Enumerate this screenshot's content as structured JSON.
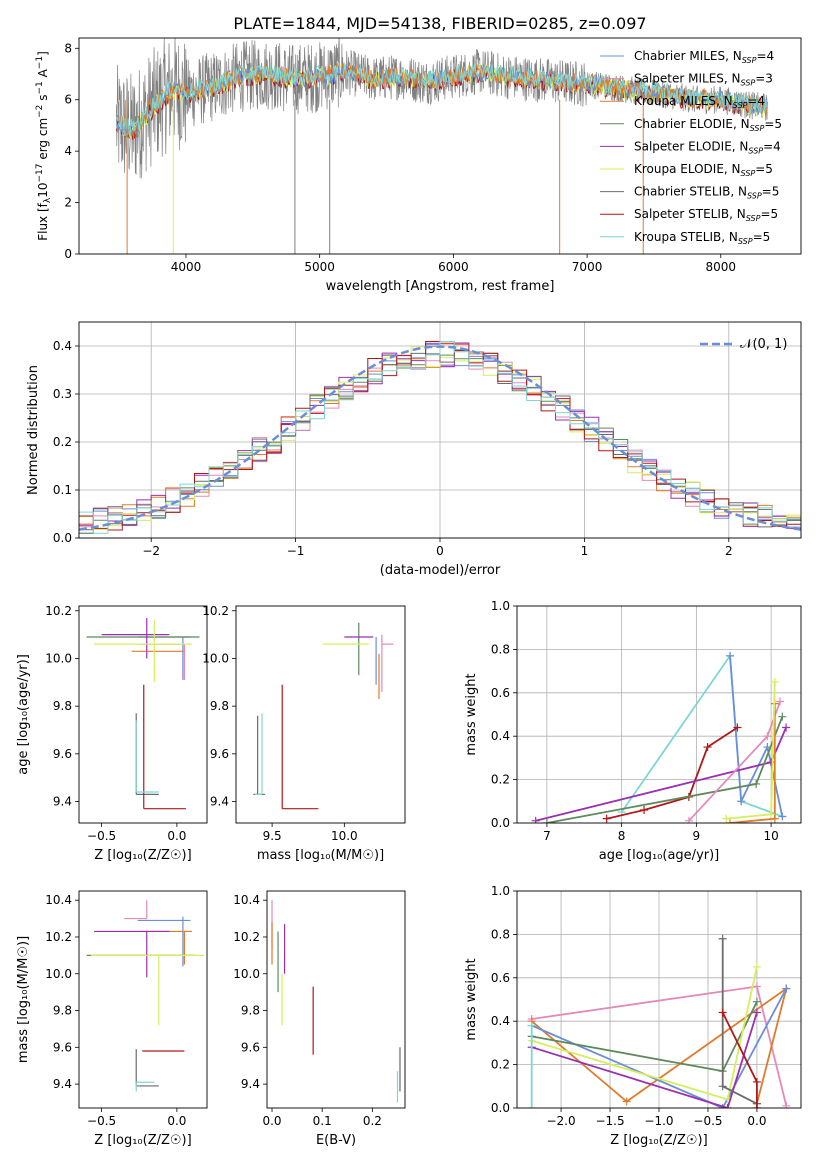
{
  "title": "PLATE=1844, MJD=54138, FIBERID=0285, z=0.097",
  "colors": {
    "chabrier_miles": "#6a8fd8",
    "salpeter_miles": "#e589b8",
    "kroupa_miles": "#e07b2a",
    "chabrier_elodie": "#5e8a5e",
    "salpeter_elodie": "#9b2fb0",
    "kroupa_elodie": "#d6ee5a",
    "chabrier_stelib": "#6b6b6b",
    "salpeter_stelib": "#b01818",
    "kroupa_stelib": "#7fd6d6"
  },
  "chart_data": [
    {
      "id": "spectrum",
      "type": "line",
      "xlabel": "wavelength [Angstrom, rest frame]",
      "ylabel": "Flux [f$_λ$10$^{-17}$ erg cm$^{-2}$ s$^{-1}$ A$^{-1}$]",
      "ylabel_parts": [
        "Flux [f",
        "λ",
        "10",
        "−17",
        " erg cm",
        "−2",
        " s",
        "−1",
        " A",
        "−1",
        "]"
      ],
      "xlim": [
        3200,
        8600
      ],
      "ylim": [
        0,
        8.4
      ],
      "xticks": [
        4000,
        5000,
        6000,
        7000,
        8000
      ],
      "yticks": [
        0,
        2,
        4,
        6,
        8
      ],
      "data_x": [
        3480,
        3600,
        3750,
        3900,
        4000,
        4200,
        4400,
        4600,
        4800,
        5000,
        5200,
        5400,
        5600,
        5800,
        6000,
        6200,
        6400,
        6600,
        6800,
        7000,
        7200,
        7400,
        7600,
        7800,
        8000,
        8200,
        8350
      ],
      "data_y": [
        5.1,
        4.8,
        5.7,
        6.4,
        6.2,
        6.5,
        6.9,
        7.0,
        6.8,
        6.9,
        7.1,
        6.8,
        6.9,
        6.7,
        6.9,
        7.1,
        6.9,
        6.8,
        6.7,
        6.6,
        6.5,
        6.3,
        6.2,
        6.0,
        6.0,
        5.8,
        5.7
      ],
      "legend_location": "upper right",
      "legend": [
        {
          "name": "Chabrier MILES",
          "n": "4",
          "color_key": "chabrier_miles"
        },
        {
          "name": "Salpeter MILES",
          "n": "3",
          "color_key": "salpeter_miles"
        },
        {
          "name": "Kroupa MILES",
          "n": "4",
          "color_key": "kroupa_miles"
        },
        {
          "name": "Chabrier ELODIE",
          "n": "5",
          "color_key": "chabrier_elodie"
        },
        {
          "name": "Salpeter ELODIE",
          "n": "4",
          "color_key": "salpeter_elodie"
        },
        {
          "name": "Kroupa ELODIE",
          "n": "5",
          "color_key": "kroupa_elodie"
        },
        {
          "name": "Chabrier STELIB",
          "n": "5",
          "color_key": "chabrier_stelib"
        },
        {
          "name": "Salpeter STELIB",
          "n": "5",
          "color_key": "salpeter_stelib"
        },
        {
          "name": "Kroupa STELIB",
          "n": "5",
          "color_key": "kroupa_stelib"
        }
      ],
      "nssp_label": "N",
      "nssp_sub": "SSP",
      "grid": false
    },
    {
      "id": "residuals",
      "type": "histogram",
      "xlabel": "(data-model)/error",
      "ylabel": "Normed distribution",
      "xlim": [
        -2.5,
        2.5
      ],
      "ylim": [
        0,
        0.45
      ],
      "xticks": [
        -2,
        -1,
        0,
        1,
        2
      ],
      "yticks": [
        0.0,
        0.1,
        0.2,
        0.3,
        0.4
      ],
      "bin_width": 0.1,
      "normal_curve_label": "𝒩(0, 1)",
      "grid": true
    },
    {
      "id": "age_vs_z",
      "type": "errorbar",
      "xlabel": "Z [log₁₀(Z/Z☉)]",
      "ylabel": "age  [log₁₀(age/yr)]",
      "xlim": [
        -0.65,
        0.2
      ],
      "ylim": [
        9.31,
        10.22
      ],
      "xticks": [
        -0.5,
        0.0
      ],
      "yticks": [
        9.4,
        9.6,
        9.8,
        10.0,
        10.2
      ],
      "points": [
        {
          "color_key": "chabrier_miles",
          "x": 0.04,
          "xerr": [
            0.3,
            0.05
          ],
          "y": 10.09,
          "yerr": [
            0.18,
            0.0
          ]
        },
        {
          "color_key": "salpeter_miles",
          "x": 0.05,
          "xerr": [
            0.3,
            0.0
          ],
          "y": 10.06,
          "yerr": [
            0.15,
            0.0
          ]
        },
        {
          "color_key": "kroupa_miles",
          "x": 0.0,
          "xerr": [
            0.3,
            0.05
          ],
          "y": 10.03,
          "yerr": [
            0.0,
            0.0
          ]
        },
        {
          "color_key": "chabrier_elodie",
          "x": -0.1,
          "xerr": [
            0.5,
            0.25
          ],
          "y": 10.09,
          "yerr": [
            0.0,
            0.0
          ]
        },
        {
          "color_key": "salpeter_elodie",
          "x": -0.2,
          "xerr": [
            0.3,
            0.15
          ],
          "y": 10.1,
          "yerr": [
            0.1,
            0.07
          ]
        },
        {
          "color_key": "kroupa_elodie",
          "x": -0.15,
          "xerr": [
            0.4,
            0.25
          ],
          "y": 10.06,
          "yerr": [
            0.16,
            0.1
          ]
        },
        {
          "color_key": "chabrier_stelib",
          "x": -0.27,
          "xerr": [
            0.0,
            0.15
          ],
          "y": 9.43,
          "yerr": [
            0.0,
            0.34
          ]
        },
        {
          "color_key": "salpeter_stelib",
          "x": -0.22,
          "xerr": [
            0.0,
            0.28
          ],
          "y": 9.37,
          "yerr": [
            0.0,
            0.52
          ]
        },
        {
          "color_key": "kroupa_stelib",
          "x": -0.27,
          "xerr": [
            0.0,
            0.15
          ],
          "y": 9.44,
          "yerr": [
            0.0,
            0.3
          ]
        }
      ]
    },
    {
      "id": "age_vs_mass",
      "type": "errorbar",
      "xlabel": "mass [log₁₀(M/M☉)]",
      "xlim": [
        9.25,
        10.42
      ],
      "ylim": [
        9.31,
        10.22
      ],
      "xticks": [
        9.5,
        10.0
      ],
      "yticks": [
        9.4,
        9.6,
        9.8,
        10.0,
        10.2
      ],
      "points": [
        {
          "color_key": "chabrier_miles",
          "x": 10.22,
          "xerr": [
            0.0,
            0.0
          ],
          "y": 10.09,
          "yerr": [
            0.2,
            0.0
          ]
        },
        {
          "color_key": "salpeter_miles",
          "x": 10.26,
          "xerr": [
            0.0,
            0.08
          ],
          "y": 10.06,
          "yerr": [
            0.2,
            0.04
          ]
        },
        {
          "color_key": "kroupa_miles",
          "x": 10.24,
          "xerr": [
            0.0,
            0.0
          ],
          "y": 10.02,
          "yerr": [
            0.19,
            0.0
          ]
        },
        {
          "color_key": "chabrier_elodie",
          "x": 10.1,
          "xerr": [
            0.0,
            0.0
          ],
          "y": 10.05,
          "yerr": [
            0.12,
            0.1
          ]
        },
        {
          "color_key": "salpeter_elodie",
          "x": 10.1,
          "xerr": [
            0.1,
            0.1
          ],
          "y": 10.09,
          "yerr": [
            0.0,
            0.0
          ]
        },
        {
          "color_key": "kroupa_elodie",
          "x": 10.05,
          "xerr": [
            0.2,
            0.12
          ],
          "y": 10.06,
          "yerr": [
            0.0,
            0.0
          ]
        },
        {
          "color_key": "chabrier_stelib",
          "x": 9.4,
          "xerr": [
            0.03,
            0.05
          ],
          "y": 9.43,
          "yerr": [
            0.0,
            0.33
          ]
        },
        {
          "color_key": "salpeter_stelib",
          "x": 9.57,
          "xerr": [
            0.0,
            0.25
          ],
          "y": 9.37,
          "yerr": [
            0.0,
            0.52
          ]
        },
        {
          "color_key": "kroupa_stelib",
          "x": 9.43,
          "xerr": [
            0.05,
            0.0
          ],
          "y": 9.43,
          "yerr": [
            0.0,
            0.34
          ]
        }
      ]
    },
    {
      "id": "weight_vs_age",
      "type": "line",
      "xlabel": "age  [log₁₀(age/yr)]",
      "ylabel": "mass weight",
      "xlim": [
        6.6,
        10.4
      ],
      "ylim": [
        0,
        1
      ],
      "xticks": [
        7,
        8,
        9,
        10
      ],
      "yticks": [
        0.0,
        0.2,
        0.4,
        0.6,
        0.8,
        1.0
      ],
      "grid": true,
      "series": [
        {
          "color_key": "kroupa_stelib",
          "points": [
            [
              8.0,
              0.05
            ],
            [
              9.45,
              0.77
            ],
            [
              9.6,
              0.1
            ],
            [
              10.15,
              0.03
            ]
          ]
        },
        {
          "color_key": "chabrier_miles",
          "points": [
            [
              9.45,
              0.77
            ],
            [
              9.6,
              0.1
            ],
            [
              9.95,
              0.35
            ],
            [
              10.15,
              0.03
            ]
          ]
        },
        {
          "color_key": "salpeter_stelib",
          "points": [
            [
              7.8,
              0.02
            ],
            [
              8.3,
              0.06
            ],
            [
              8.9,
              0.12
            ],
            [
              9.15,
              0.35
            ],
            [
              9.55,
              0.44
            ]
          ]
        },
        {
          "color_key": "salpeter_elodie",
          "points": [
            [
              6.85,
              0.01
            ],
            [
              10.0,
              0.28
            ],
            [
              10.2,
              0.44
            ]
          ]
        },
        {
          "color_key": "chabrier_elodie",
          "points": [
            [
              7.0,
              0.0
            ],
            [
              9.8,
              0.18
            ],
            [
              10.15,
              0.49
            ]
          ]
        },
        {
          "color_key": "salpeter_miles",
          "points": [
            [
              8.9,
              0.01
            ],
            [
              9.95,
              0.4
            ],
            [
              10.12,
              0.56
            ]
          ]
        },
        {
          "color_key": "kroupa_miles",
          "points": [
            [
              9.45,
              0.0
            ],
            [
              10.05,
              0.02
            ],
            [
              10.05,
              0.55
            ]
          ]
        },
        {
          "color_key": "kroupa_elodie",
          "points": [
            [
              9.4,
              0.02
            ],
            [
              10.0,
              0.04
            ],
            [
              10.05,
              0.65
            ]
          ]
        }
      ]
    },
    {
      "id": "mass_vs_z",
      "type": "errorbar",
      "xlabel": "Z [log₁₀(Z/Z☉)]",
      "ylabel": "mass [log₁₀(M/M☉)]",
      "xlim": [
        -0.65,
        0.2
      ],
      "ylim": [
        9.27,
        10.45
      ],
      "xticks": [
        -0.5,
        0.0
      ],
      "yticks": [
        9.4,
        9.6,
        9.8,
        10.0,
        10.2,
        10.4
      ],
      "points": [
        {
          "color_key": "chabrier_miles",
          "x": 0.04,
          "xerr": [
            0.3,
            0.05
          ],
          "y": 10.29,
          "yerr": [
            0.25,
            0.02
          ]
        },
        {
          "color_key": "salpeter_miles",
          "x": -0.2,
          "xerr": [
            0.15,
            0.0
          ],
          "y": 10.3,
          "yerr": [
            0.0,
            0.1
          ]
        },
        {
          "color_key": "kroupa_miles",
          "x": 0.05,
          "xerr": [
            0.3,
            0.05
          ],
          "y": 10.23,
          "yerr": [
            0.18,
            0.0
          ]
        },
        {
          "color_key": "chabrier_elodie",
          "x": -0.1,
          "xerr": [
            0.5,
            0.22
          ],
          "y": 10.1,
          "yerr": [
            0.0,
            0.0
          ]
        },
        {
          "color_key": "salpeter_elodie",
          "x": -0.2,
          "xerr": [
            0.35,
            0.15
          ],
          "y": 10.23,
          "yerr": [
            0.25,
            0.0
          ]
        },
        {
          "color_key": "kroupa_elodie",
          "x": -0.12,
          "xerr": [
            0.45,
            0.3
          ],
          "y": 10.1,
          "yerr": [
            0.38,
            0.0
          ]
        },
        {
          "color_key": "chabrier_stelib",
          "x": -0.27,
          "xerr": [
            0.0,
            0.15
          ],
          "y": 9.39,
          "yerr": [
            0.0,
            0.2
          ]
        },
        {
          "color_key": "salpeter_stelib",
          "x": -0.23,
          "xerr": [
            0.0,
            0.28
          ],
          "y": 9.58,
          "yerr": [
            0.0,
            0.0
          ]
        },
        {
          "color_key": "kroupa_stelib",
          "x": -0.27,
          "xerr": [
            0.0,
            0.12
          ],
          "y": 9.41,
          "yerr": [
            0.05,
            0.0
          ]
        }
      ]
    },
    {
      "id": "mass_vs_ebv",
      "type": "errorbar",
      "xlabel": "E(B-V)",
      "xlim": [
        -0.01,
        0.265
      ],
      "ylim": [
        9.27,
        10.45
      ],
      "xticks": [
        0.0,
        0.1,
        0.2
      ],
      "yticks": [
        9.4,
        9.6,
        9.8,
        10.0,
        10.2,
        10.4
      ],
      "points": [
        {
          "color_key": "salpeter_miles",
          "x": 0.0,
          "xerr": [
            0.0,
            0.0
          ],
          "y": 10.23,
          "yerr": [
            0.1,
            0.17
          ]
        },
        {
          "color_key": "kroupa_miles",
          "x": 0.0,
          "xerr": [
            0.0,
            0.0
          ],
          "y": 10.18,
          "yerr": [
            0.13,
            0.1
          ]
        },
        {
          "color_key": "chabrier_elodie",
          "x": 0.012,
          "xerr": [
            0.0,
            0.0
          ],
          "y": 10.08,
          "yerr": [
            0.18,
            0.15
          ]
        },
        {
          "color_key": "salpeter_elodie",
          "x": 0.025,
          "xerr": [
            0.0,
            0.0
          ],
          "y": 10.1,
          "yerr": [
            0.1,
            0.17
          ]
        },
        {
          "color_key": "kroupa_elodie",
          "x": 0.02,
          "xerr": [
            0.0,
            0.0
          ],
          "y": 9.9,
          "yerr": [
            0.18,
            0.1
          ]
        },
        {
          "color_key": "salpeter_stelib",
          "x": 0.082,
          "xerr": [
            0.0,
            0.0
          ],
          "y": 9.75,
          "yerr": [
            0.19,
            0.18
          ]
        },
        {
          "color_key": "chabrier_stelib",
          "x": 0.255,
          "xerr": [
            0.0,
            0.0
          ],
          "y": 9.48,
          "yerr": [
            0.12,
            0.12
          ]
        },
        {
          "color_key": "kroupa_stelib",
          "x": 0.25,
          "xerr": [
            0.0,
            0.0
          ],
          "y": 9.42,
          "yerr": [
            0.12,
            0.05
          ]
        }
      ]
    },
    {
      "id": "weight_vs_z",
      "type": "line",
      "xlabel": "Z [log₁₀(Z/Z☉)]",
      "ylabel": "mass weight",
      "xlim": [
        -2.45,
        0.45
      ],
      "ylim": [
        0,
        1
      ],
      "xticks": [
        -2.0,
        -1.5,
        -1.0,
        -0.5,
        0.0
      ],
      "yticks": [
        0.0,
        0.2,
        0.4,
        0.6,
        0.8,
        1.0
      ],
      "grid": true,
      "series": [
        {
          "color_key": "salpeter_miles",
          "points": [
            [
              -2.3,
              0.41
            ],
            [
              0.0,
              0.56
            ],
            [
              0.3,
              0.01
            ]
          ]
        },
        {
          "color_key": "kroupa_miles",
          "points": [
            [
              -2.3,
              0.4
            ],
            [
              -1.33,
              0.03
            ],
            [
              0.3,
              0.55
            ],
            [
              0.0,
              0.02
            ]
          ]
        },
        {
          "color_key": "chabrier_miles",
          "points": [
            [
              -2.3,
              0.38
            ],
            [
              -0.35,
              0.0
            ],
            [
              0.3,
              0.55
            ]
          ]
        },
        {
          "color_key": "chabrier_elodie",
          "points": [
            [
              -2.3,
              0.33
            ],
            [
              -0.35,
              0.17
            ],
            [
              0.0,
              0.49
            ]
          ]
        },
        {
          "color_key": "kroupa_elodie",
          "points": [
            [
              -2.3,
              0.31
            ],
            [
              -0.3,
              0.04
            ],
            [
              0.0,
              0.65
            ]
          ]
        },
        {
          "color_key": "salpeter_elodie",
          "points": [
            [
              -2.3,
              0.28
            ],
            [
              -0.3,
              0.0
            ],
            [
              0.0,
              0.44
            ]
          ]
        },
        {
          "color_key": "kroupa_stelib",
          "points": [
            [
              -2.3,
              0.0
            ],
            [
              -2.3,
              0.38
            ]
          ]
        },
        {
          "color_key": "chabrier_stelib",
          "points": [
            [
              -0.35,
              0.78
            ],
            [
              -0.35,
              0.1
            ],
            [
              0.0,
              0.02
            ]
          ]
        },
        {
          "color_key": "salpeter_stelib",
          "points": [
            [
              -0.35,
              0.44
            ],
            [
              0.0,
              0.12
            ],
            [
              0.0,
              0.0
            ]
          ]
        }
      ]
    }
  ]
}
